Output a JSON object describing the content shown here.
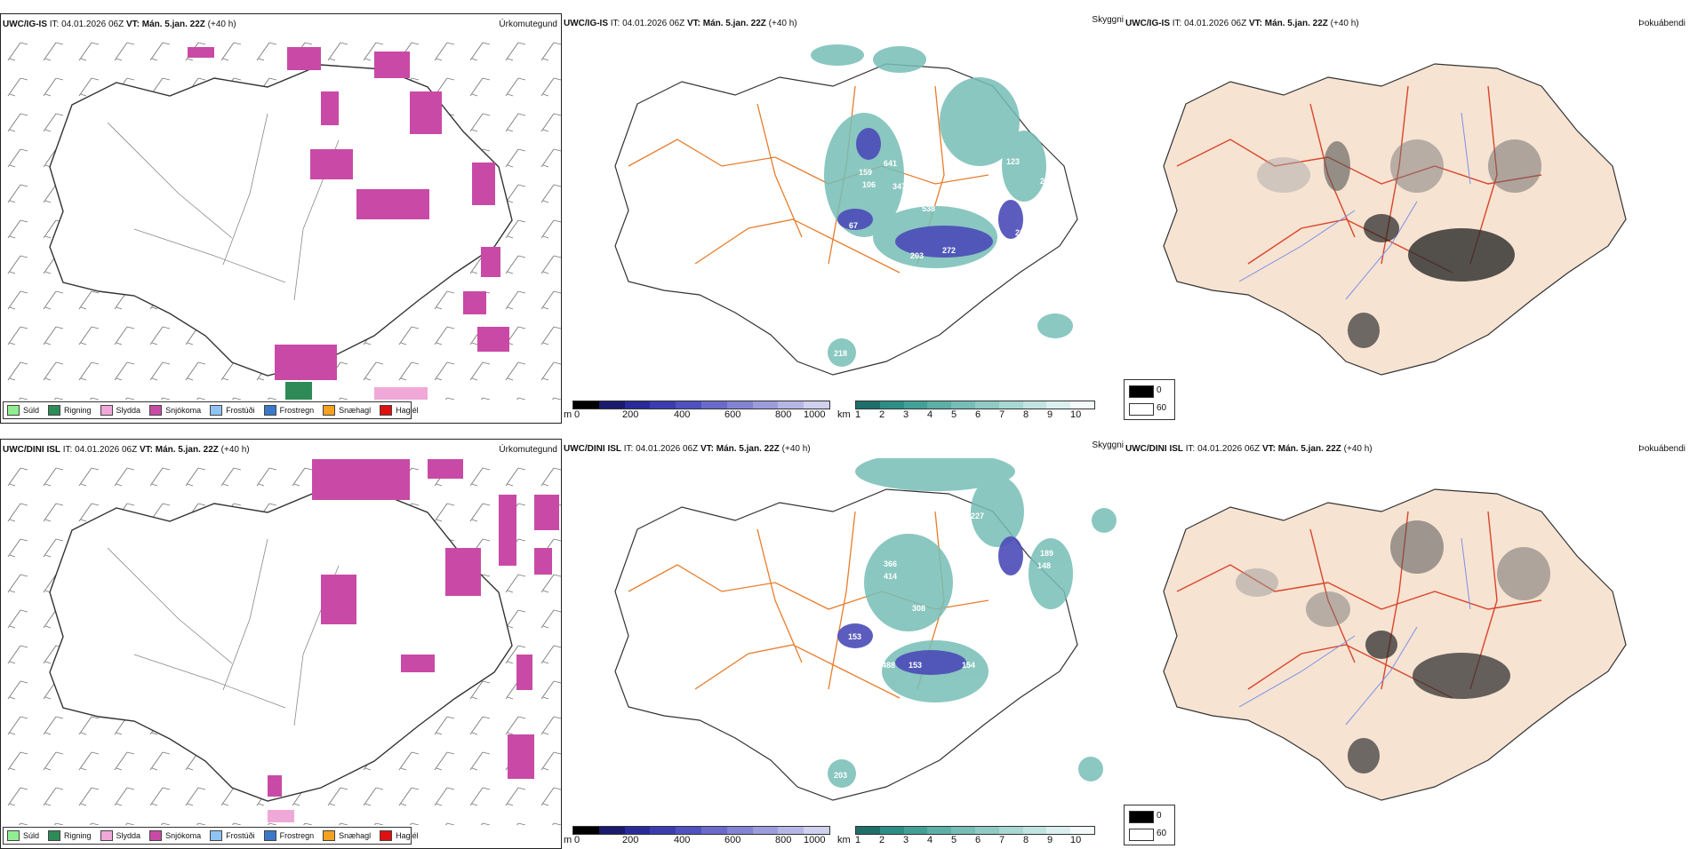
{
  "colors": {
    "precip_snow": "#c94aa6",
    "precip_pink": "#f0a8d8",
    "precip_green": "#2e8b57",
    "cloud_teal": "#2c8f86",
    "cloud_blue": "#4b4bb8",
    "roads_orange": "#e87d2c",
    "roads_red": "#d9452a",
    "land_tan": "#f6e3d2"
  },
  "rows": [
    {
      "model": "UWC/IG-IS",
      "it_label": "IT:",
      "it_value": "04.01.2026 06Z",
      "vt_label": "VT:",
      "vt_value": "Mán. 5.jan. 22Z",
      "lead": "(+40 h)",
      "cloud_labels": [
        "806",
        "641",
        "347",
        "538",
        "159",
        "106",
        "123",
        "261",
        "219",
        "272",
        "203",
        "233",
        "218",
        "67",
        "123",
        "30"
      ]
    },
    {
      "model": "UWC/DINI ISL",
      "it_label": "IT:",
      "it_value": "04.01.2026 06Z",
      "vt_label": "VT:",
      "vt_value": "Mán. 5.jan. 22Z",
      "lead": "(+40 h)",
      "cloud_labels": [
        "227",
        "189",
        "148",
        "366",
        "414",
        "308",
        "153",
        "488",
        "153",
        "154",
        "203"
      ]
    }
  ],
  "panel_titles": {
    "precip": "Úrkomutegund",
    "cloud": "Skyggni",
    "fog": "Þokuábendi"
  },
  "precip_legend": [
    {
      "label": "Súld",
      "color": "#90ee90"
    },
    {
      "label": "Rigning",
      "color": "#2e8b57"
    },
    {
      "label": "Slydda",
      "color": "#f0a8d8"
    },
    {
      "label": "Snjókoma",
      "color": "#c94aa6"
    },
    {
      "label": "Frostúði",
      "color": "#8fc3f2"
    },
    {
      "label": "Frostregn",
      "color": "#3c78c8"
    },
    {
      "label": "Snæhagl",
      "color": "#f5a020"
    },
    {
      "label": "Haglél",
      "color": "#e01010"
    }
  ],
  "height_bar": {
    "unit": "m",
    "ticks": [
      "0",
      "200",
      "400",
      "600",
      "800",
      "1000"
    ],
    "colors": [
      "#000000",
      "#1a1a6e",
      "#2a2a9a",
      "#3c3cb0",
      "#5050c0",
      "#6a6acb",
      "#8383d4",
      "#9c9cdd",
      "#b6b6e6",
      "#d0d0ef"
    ]
  },
  "vis_bar": {
    "unit": "km",
    "ticks": [
      "1",
      "2",
      "3",
      "4",
      "5",
      "6",
      "7",
      "8",
      "9",
      "10"
    ],
    "colors": [
      "#1d6f6a",
      "#2c8f86",
      "#43a097",
      "#5cb0a7",
      "#76beb6",
      "#8fcbc4",
      "#a8d8d2",
      "#c2e4e0",
      "#dbf0ee",
      "#f3faf9"
    ]
  },
  "fog_legend": {
    "low": "0",
    "high": "60"
  }
}
